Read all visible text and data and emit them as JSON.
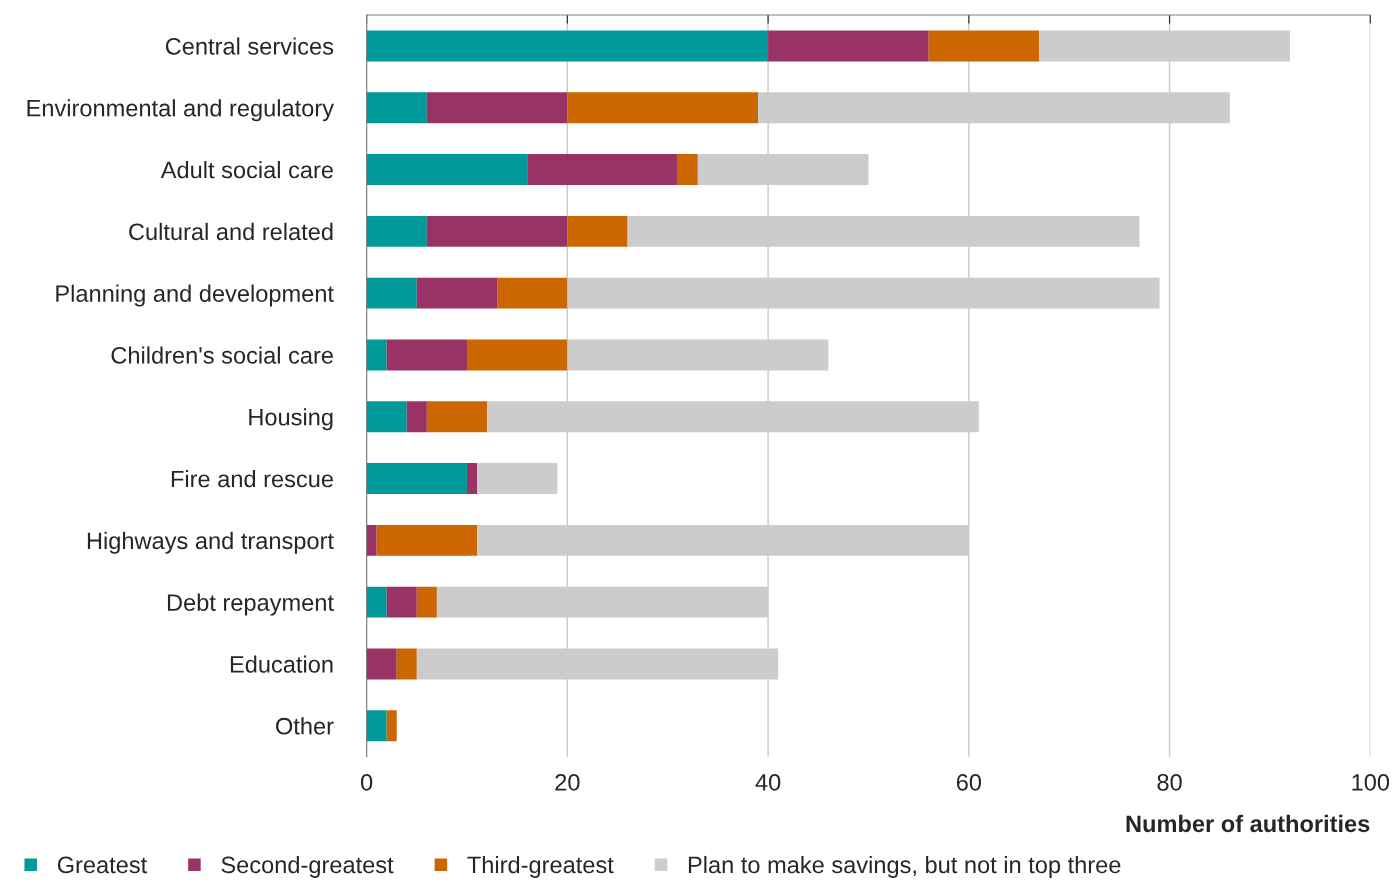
{
  "chart_data": {
    "type": "bar",
    "orientation": "horizontal",
    "stacked": true,
    "categories": [
      "Central services",
      "Environmental and regulatory",
      "Adult social care",
      "Cultural and related",
      "Planning and development",
      "Children's social care",
      "Housing",
      "Fire and rescue",
      "Highways and transport",
      "Debt repayment",
      "Education",
      "Other"
    ],
    "series": [
      {
        "name": "Greatest",
        "color": "#009999",
        "values": [
          40,
          6,
          16,
          6,
          5,
          2,
          4,
          10,
          0,
          2,
          0,
          2
        ]
      },
      {
        "name": "Second-greatest",
        "color": "#993366",
        "values": [
          16,
          14,
          15,
          14,
          8,
          8,
          2,
          1,
          1,
          3,
          3,
          0
        ]
      },
      {
        "name": "Third-greatest",
        "color": "#cc6600",
        "values": [
          11,
          19,
          2,
          6,
          7,
          10,
          6,
          0,
          10,
          2,
          2,
          1
        ]
      },
      {
        "name": "Plan to make savings, but not in top three",
        "color": "#cccccc",
        "values": [
          25,
          47,
          17,
          51,
          59,
          26,
          49,
          8,
          49,
          33,
          36,
          0
        ]
      }
    ],
    "xlim": [
      0,
      100
    ],
    "xticks": [
      0,
      20,
      40,
      60,
      80,
      100
    ],
    "xlabel": "Number of authorities",
    "grid": "x",
    "legend": "bottom left"
  }
}
